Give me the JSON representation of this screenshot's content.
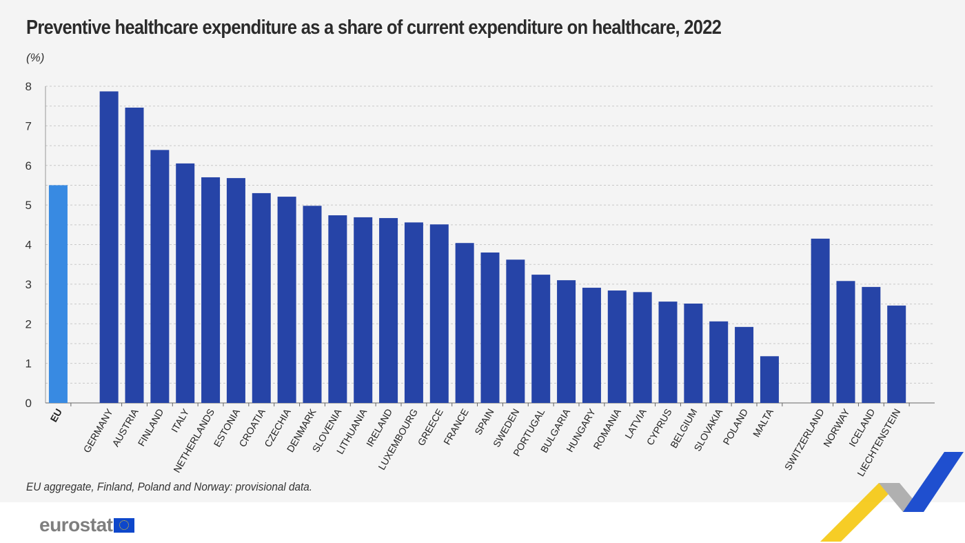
{
  "chart_data": {
    "type": "bar",
    "title": "Preventive healthcare expenditure as a share of current expenditure on healthcare, 2022",
    "unit": "(%)",
    "ylim": [
      0,
      8
    ],
    "yticks": [
      0,
      1,
      2,
      3,
      4,
      5,
      6,
      7,
      8
    ],
    "grid": true,
    "categories": [
      "EU",
      "GERMANY",
      "AUSTRIA",
      "FINLAND",
      "ITALY",
      "NETHERLANDS",
      "ESTONIA",
      "CROATIA",
      "CZECHIA",
      "DENMARK",
      "SLOVENIA",
      "LITHUANIA",
      "IRELAND",
      "LUXEMBOURG",
      "GREECE",
      "FRANCE",
      "SPAIN",
      "SWEDEN",
      "PORTUGAL",
      "BULGARIA",
      "HUNGARY",
      "ROMANIA",
      "LATVIA",
      "CYPRUS",
      "BELGIUM",
      "SLOVAKIA",
      "POLAND",
      "MALTA",
      "SWITZERLAND",
      "NORWAY",
      "ICELAND",
      "LIECHTENSTEIN"
    ],
    "values": [
      5.5,
      7.87,
      7.46,
      6.39,
      6.05,
      5.7,
      5.68,
      5.3,
      5.21,
      4.98,
      4.74,
      4.69,
      4.67,
      4.56,
      4.51,
      4.04,
      3.8,
      3.62,
      3.24,
      3.1,
      2.91,
      2.84,
      2.8,
      2.56,
      2.51,
      2.06,
      1.92,
      1.18,
      4.15,
      3.08,
      2.93,
      2.46
    ],
    "colors": {
      "eu": "#388ae2",
      "country": "#2644a7"
    },
    "note": "EU aggregate, Finland, Poland and Norway: provisional data."
  },
  "logo": "eurostat"
}
